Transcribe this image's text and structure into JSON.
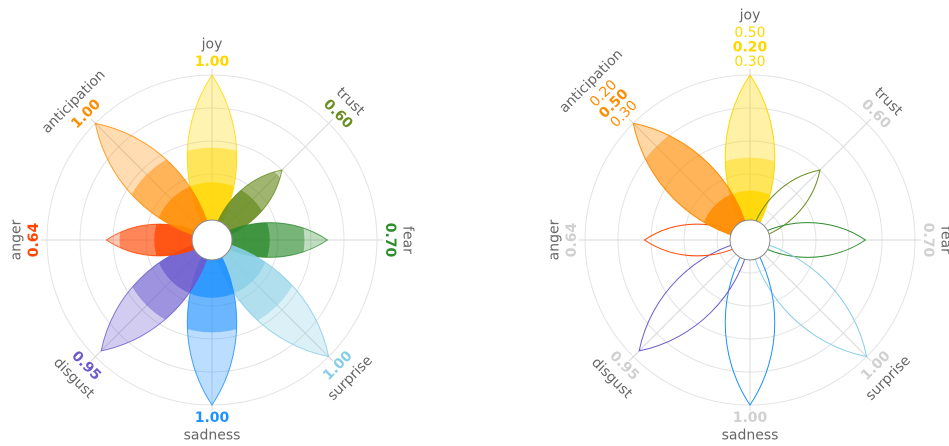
{
  "chart_data": [
    {
      "type": "flower",
      "rlim": [
        0,
        1
      ],
      "petals": [
        {
          "name": "joy",
          "color": "#ffd700",
          "value": 1,
          "value_label": "1.00"
        },
        {
          "name": "trust",
          "color": "#6b8e23",
          "value": 0.6,
          "value_label": "0.60"
        },
        {
          "name": "fear",
          "color": "#2e8b2e",
          "value": 0.7,
          "value_label": "0.70"
        },
        {
          "name": "surprise",
          "color": "#87cde6",
          "value": 1,
          "value_label": "1.00"
        },
        {
          "name": "sadness",
          "color": "#1e90ff",
          "value": 1,
          "value_label": "1.00"
        },
        {
          "name": "disgust",
          "color": "#6a5acd",
          "value": 0.95,
          "value_label": "0.95"
        },
        {
          "name": "anger",
          "color": "#ff4500",
          "value": 0.64,
          "value_label": "0.64"
        },
        {
          "name": "anticipation",
          "color": "#ff8c00",
          "value": 1,
          "value_label": "1.00"
        }
      ]
    },
    {
      "type": "flower-parts",
      "rlim": [
        0,
        1
      ],
      "muted_color": "#d0d0d0",
      "petals": [
        {
          "name": "joy",
          "color": "#ffd700",
          "parts": [
            0.5,
            0.2,
            0.3
          ],
          "part_labels": [
            "0.50",
            "0.20",
            "0.30"
          ]
        },
        {
          "name": "trust",
          "color": "#6b8e23",
          "value": 0.6,
          "value_label": "0.60"
        },
        {
          "name": "fear",
          "color": "#2e8b2e",
          "value": 0.7,
          "value_label": "0.70"
        },
        {
          "name": "surprise",
          "color": "#87cde6",
          "value": 1,
          "value_label": "1.00"
        },
        {
          "name": "sadness",
          "color": "#1e90ff",
          "value": 1,
          "value_label": "1.00"
        },
        {
          "name": "disgust",
          "color": "#6a5acd",
          "value": 0.95,
          "value_label": "0.95"
        },
        {
          "name": "anger",
          "color": "#ff4500",
          "value": 0.64,
          "value_label": "0.64"
        },
        {
          "name": "anticipation",
          "color": "#ff8c00",
          "parts": [
            0.2,
            0.5,
            0.3
          ],
          "part_labels": [
            "0.20",
            "0.50",
            "0.30"
          ]
        }
      ]
    }
  ]
}
